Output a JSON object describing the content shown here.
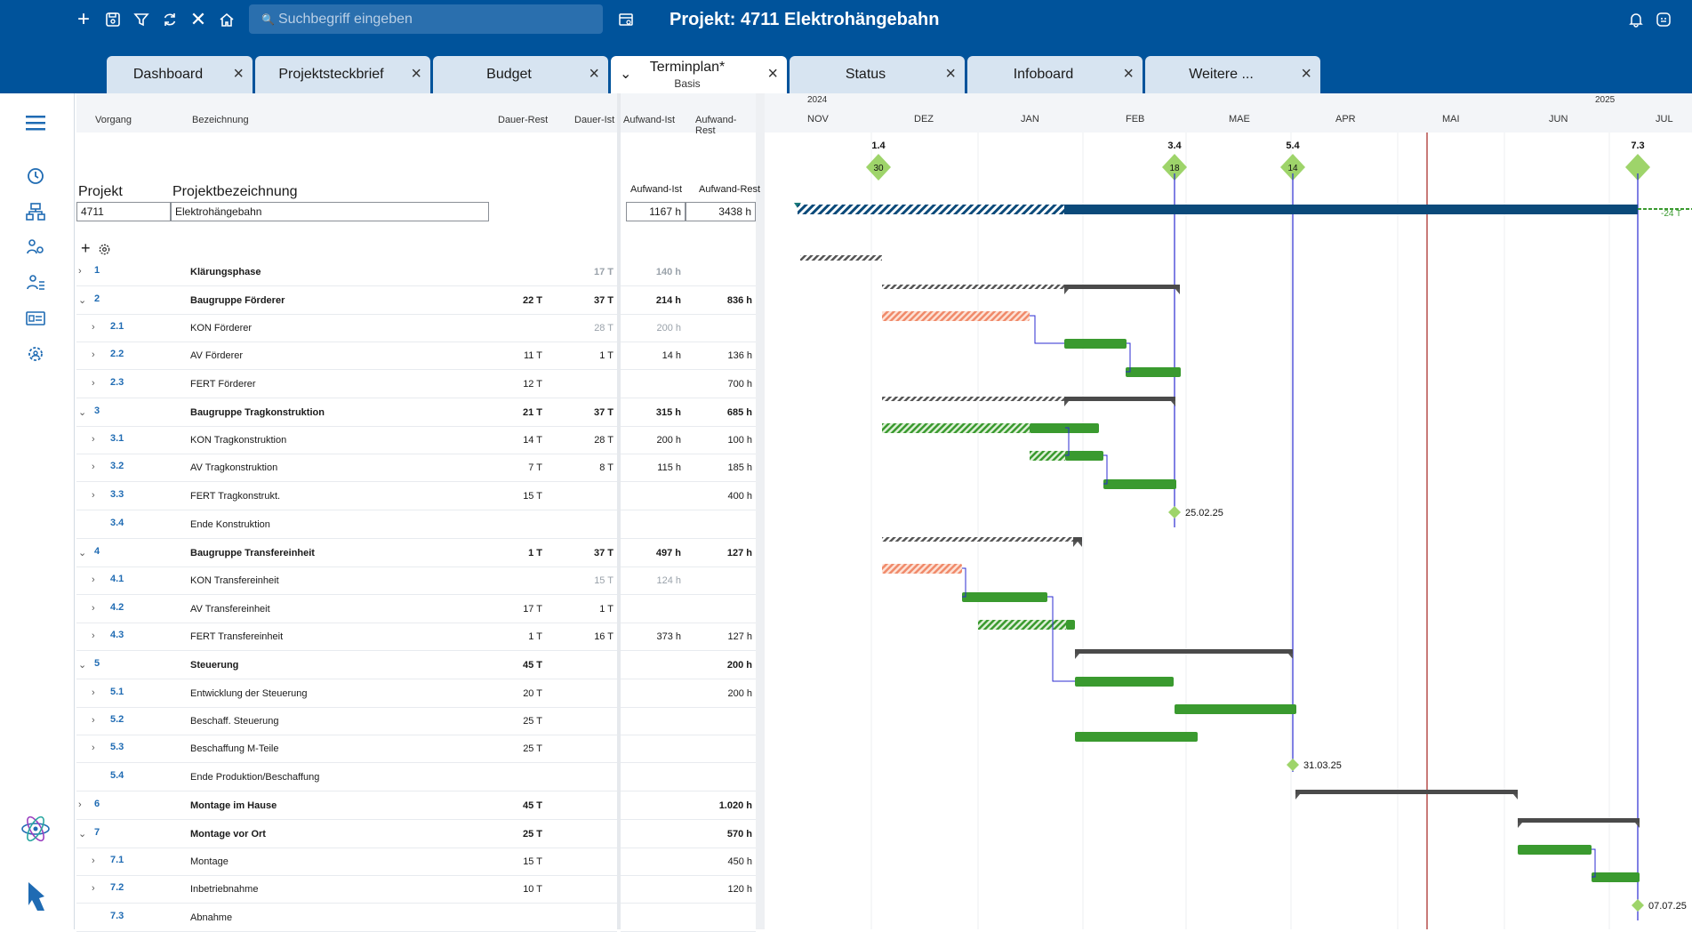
{
  "toolbar": {
    "search_placeholder": "Suchbegriff eingeben",
    "title": "Projekt: 4711 Elektrohängebahn"
  },
  "tabs": [
    {
      "label": "Dashboard"
    },
    {
      "label": "Projektsteckbrief"
    },
    {
      "label": "Budget"
    },
    {
      "label": "Terminplan*",
      "sub": "Basis",
      "active": true
    },
    {
      "label": "Status"
    },
    {
      "label": "Infoboard"
    },
    {
      "label": "Weitere ..."
    }
  ],
  "columns": {
    "vorgang": "Vorgang",
    "bezeichnung": "Bezeichnung",
    "dauer_rest": "Dauer-Rest",
    "dauer_ist": "Dauer-Ist",
    "aufwand_ist": "Aufwand-Ist",
    "aufwand_rest": "Aufwand-Rest"
  },
  "project": {
    "label_projekt": "Projekt",
    "label_bez": "Projektbezeichnung",
    "label_aufwand_ist": "Aufwand-Ist",
    "label_aufwand_rest": "Aufwand-Rest",
    "id": "4711",
    "name": "Elektrohängebahn",
    "aufwand_ist": "1167 h",
    "aufwand_rest": "3438 h"
  },
  "timeline": {
    "year_left": "2024",
    "year_right": "2025",
    "months": [
      "NOV",
      "DEZ",
      "JAN",
      "FEB",
      "MAE",
      "APR",
      "MAI",
      "JUN",
      "JUL"
    ],
    "milestones": [
      {
        "top": "1.4",
        "value": "30"
      },
      {
        "top": "3.4",
        "value": "18"
      },
      {
        "top": "5.4",
        "value": "14"
      },
      {
        "top": "7.3",
        "value": ""
      }
    ],
    "project_bar_label": "-24 T",
    "dates": {
      "m34": "25.02.25",
      "m54": "31.03.25",
      "m73": "07.07.25"
    }
  },
  "rows": [
    {
      "expand": "›",
      "id": "1",
      "name": "Klärungsphase",
      "bold": true,
      "dr": "",
      "di": "17 T",
      "ai": "140 h",
      "ar": "",
      "grey_di": true,
      "grey_ai": true
    },
    {
      "expand": "⌄",
      "id": "2",
      "name": "Baugruppe Förderer",
      "bold": true,
      "dr": "22 T",
      "di": "37 T",
      "ai": "214 h",
      "ar": "836 h"
    },
    {
      "expand": "›",
      "id": "2.1",
      "name": "KON Förderer",
      "sub": true,
      "dr": "",
      "di": "28 T",
      "ai": "200 h",
      "ar": "",
      "grey_di": true,
      "grey_ai": true
    },
    {
      "expand": "›",
      "id": "2.2",
      "name": "AV Förderer",
      "sub": true,
      "dr": "11 T",
      "di": "1 T",
      "ai": "14 h",
      "ar": "136 h"
    },
    {
      "expand": "›",
      "id": "2.3",
      "name": "FERT Förderer",
      "sub": true,
      "dr": "12 T",
      "di": "",
      "ai": "",
      "ar": "700 h"
    },
    {
      "expand": "⌄",
      "id": "3",
      "name": "Baugruppe Tragkonstruktion",
      "bold": true,
      "dr": "21 T",
      "di": "37 T",
      "ai": "315 h",
      "ar": "685 h"
    },
    {
      "expand": "›",
      "id": "3.1",
      "name": "KON Tragkonstruktion",
      "sub": true,
      "dr": "14 T",
      "di": "28 T",
      "ai": "200 h",
      "ar": "100 h"
    },
    {
      "expand": "›",
      "id": "3.2",
      "name": "AV Tragkonstruktion",
      "sub": true,
      "dr": "7 T",
      "di": "8 T",
      "ai": "115 h",
      "ar": "185 h"
    },
    {
      "expand": "›",
      "id": "3.3",
      "name": "FERT Tragkonstrukt.",
      "sub": true,
      "dr": "15 T",
      "di": "",
      "ai": "",
      "ar": "400 h"
    },
    {
      "expand": "",
      "id": "3.4",
      "name": "Ende Konstruktion",
      "sub": true,
      "dr": "",
      "di": "",
      "ai": "",
      "ar": ""
    },
    {
      "expand": "⌄",
      "id": "4",
      "name": "Baugruppe Transfereinheit",
      "bold": true,
      "dr": "1 T",
      "di": "37 T",
      "ai": "497 h",
      "ar": "127 h"
    },
    {
      "expand": "›",
      "id": "4.1",
      "name": "KON Transfereinheit",
      "sub": true,
      "dr": "",
      "di": "15 T",
      "ai": "124 h",
      "ar": "",
      "grey_di": true,
      "grey_ai": true
    },
    {
      "expand": "›",
      "id": "4.2",
      "name": "AV Transfereinheit",
      "sub": true,
      "dr": "17 T",
      "di": "1 T",
      "ai": "",
      "ar": ""
    },
    {
      "expand": "›",
      "id": "4.3",
      "name": "FERT Transfereinheit",
      "sub": true,
      "dr": "1 T",
      "di": "16 T",
      "ai": "373 h",
      "ar": "127 h"
    },
    {
      "expand": "⌄",
      "id": "5",
      "name": "Steuerung",
      "bold": true,
      "dr": "45 T",
      "di": "",
      "ai": "",
      "ar": "200 h"
    },
    {
      "expand": "›",
      "id": "5.1",
      "name": "Entwicklung der Steuerung",
      "sub": true,
      "dr": "20 T",
      "di": "",
      "ai": "",
      "ar": "200 h"
    },
    {
      "expand": "›",
      "id": "5.2",
      "name": "Beschaff. Steuerung",
      "sub": true,
      "dr": "25 T",
      "di": "",
      "ai": "",
      "ar": ""
    },
    {
      "expand": "›",
      "id": "5.3",
      "name": "Beschaffung M-Teile",
      "sub": true,
      "dr": "25 T",
      "di": "",
      "ai": "",
      "ar": ""
    },
    {
      "expand": "",
      "id": "5.4",
      "name": "Ende Produktion/Beschaffung",
      "sub": true,
      "dr": "",
      "di": "",
      "ai": "",
      "ar": ""
    },
    {
      "expand": "›",
      "id": "6",
      "name": "Montage im Hause",
      "bold": true,
      "dr": "45 T",
      "di": "",
      "ai": "",
      "ar": "1.020 h"
    },
    {
      "expand": "⌄",
      "id": "7",
      "name": "Montage vor Ort",
      "bold": true,
      "dr": "25 T",
      "di": "",
      "ai": "",
      "ar": "570 h"
    },
    {
      "expand": "›",
      "id": "7.1",
      "name": "Montage",
      "sub": true,
      "dr": "15 T",
      "di": "",
      "ai": "",
      "ar": "450 h"
    },
    {
      "expand": "›",
      "id": "7.2",
      "name": "Inbetriebnahme",
      "sub": true,
      "dr": "10 T",
      "di": "",
      "ai": "",
      "ar": "120 h"
    },
    {
      "expand": "",
      "id": "7.3",
      "name": "Abnahme",
      "sub": true,
      "dr": "",
      "di": "",
      "ai": "",
      "ar": ""
    }
  ],
  "colors": {
    "brand": "#00539b",
    "green": "#3a9a2f",
    "salmon": "#f08a6a",
    "dark": "#3d3d3d",
    "navy": "#0b4a7a",
    "milestone": "#9ed46a"
  }
}
